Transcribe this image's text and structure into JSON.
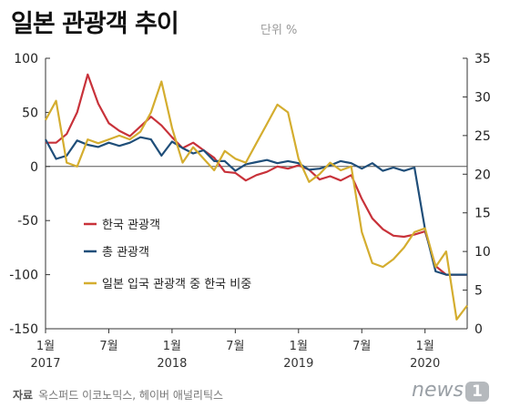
{
  "title": "일본 관광객 추이",
  "unit_label": "단위 %",
  "source_label": "자료",
  "source_text": "옥스퍼드 이코노믹스, 헤이버 애널리틱스",
  "logo_text": "news",
  "logo_badge": "1",
  "chart_data": {
    "type": "line",
    "x_tick_labels": [
      {
        "month": "1월",
        "year": "2017"
      },
      {
        "month": "7월",
        "year": ""
      },
      {
        "month": "1월",
        "year": "2018"
      },
      {
        "month": "7월",
        "year": ""
      },
      {
        "month": "1월",
        "year": "2019"
      },
      {
        "month": "7월",
        "year": ""
      },
      {
        "month": "1월",
        "year": "2020"
      }
    ],
    "x_tick_index": [
      0,
      6,
      12,
      18,
      24,
      30,
      36
    ],
    "left_axis": {
      "min": -150,
      "max": 100,
      "ticks": [
        "100",
        "50",
        "0",
        "-50",
        "-100",
        "-150"
      ],
      "tick_values": [
        100,
        50,
        0,
        -50,
        -100,
        -150
      ]
    },
    "right_axis": {
      "min": 0,
      "max": 35,
      "ticks": [
        "35",
        "30",
        "25",
        "20",
        "15",
        "10",
        "5",
        "0"
      ],
      "tick_values": [
        35,
        30,
        25,
        20,
        15,
        10,
        5,
        0
      ]
    },
    "zero_line": 0,
    "legend_position": "left-middle",
    "series": [
      {
        "name": "한국 관광객",
        "color": "#c8323a",
        "axis": "left",
        "values": [
          22,
          22,
          30,
          50,
          85,
          58,
          40,
          33,
          28,
          37,
          46,
          38,
          27,
          17,
          22,
          15,
          8,
          -5,
          -6,
          -13,
          -8,
          -5,
          0,
          -2,
          1,
          -3,
          -12,
          -9,
          -13,
          -8,
          -30,
          -48,
          -58,
          -64,
          -65,
          -63,
          -60,
          -92,
          -100,
          -100,
          -100
        ]
      },
      {
        "name": "총 관광객",
        "color": "#1f4e79",
        "axis": "left",
        "values": [
          25,
          7,
          10,
          24,
          20,
          18,
          22,
          19,
          22,
          27,
          25,
          10,
          23,
          17,
          12,
          15,
          5,
          5,
          -4,
          2,
          4,
          6,
          3,
          5,
          3,
          -3,
          -2,
          1,
          5,
          3,
          -2,
          3,
          -4,
          -1,
          -4,
          -1,
          -58,
          -97,
          -100,
          -100,
          -100
        ]
      },
      {
        "name": "일본 입국 관광객 중 한국 비중",
        "color": "#d4ad2f",
        "axis": "right",
        "values": [
          27,
          29.5,
          21.5,
          21,
          24.5,
          24,
          24.5,
          25,
          24.5,
          25.5,
          28,
          32,
          26,
          21.5,
          23.5,
          22,
          20.5,
          23,
          22,
          21.5,
          24,
          26.5,
          29,
          28,
          22,
          19,
          20,
          21.5,
          20.5,
          21,
          12.5,
          8.5,
          8,
          9,
          10.5,
          12.5,
          13,
          8,
          10,
          1.2,
          3
        ]
      }
    ]
  }
}
